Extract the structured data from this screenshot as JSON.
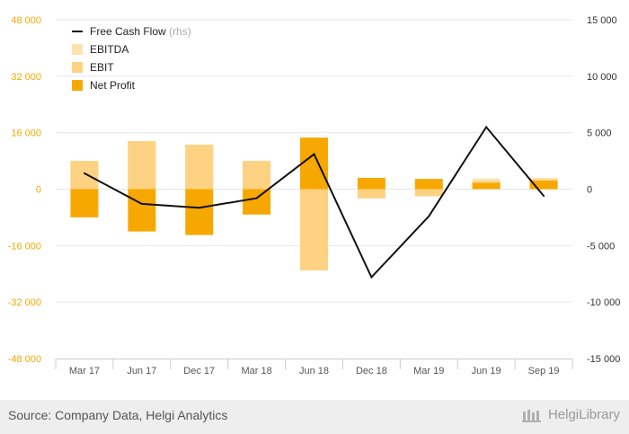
{
  "chart_data": {
    "type": "bar+line",
    "categories": [
      "Mar 17",
      "Jun 17",
      "Dec 17",
      "Mar 18",
      "Jun 18",
      "Dec 18",
      "Mar 19",
      "Jun 19",
      "Sep 19"
    ],
    "series": [
      {
        "name": "EBITDA",
        "axis": "left",
        "color": "#fde2ad",
        "values": [
          8000,
          13600,
          12600,
          8000,
          -23000,
          -2600,
          -2000,
          3000,
          3200
        ]
      },
      {
        "name": "EBIT",
        "axis": "left",
        "color": "#fdd282",
        "values": [
          8000,
          13600,
          12600,
          8000,
          -23000,
          -2600,
          -2000,
          2200,
          2700
        ]
      },
      {
        "name": "Net Profit",
        "axis": "left",
        "color": "#f7a800",
        "values": [
          -8000,
          -12000,
          -13000,
          -7200,
          14600,
          3200,
          2900,
          1800,
          2400
        ]
      },
      {
        "name": "Free Cash Flow",
        "suffix": "(rhs)",
        "axis": "right",
        "color": "#111111",
        "values": [
          1400,
          -1300,
          -1650,
          -800,
          3100,
          -7800,
          -2400,
          5500,
          -600
        ]
      }
    ],
    "left_axis": {
      "min": -48000,
      "max": 48000,
      "ticks": [
        "48 000",
        "32 000",
        "16 000",
        "0",
        "-16 000",
        "-32 000",
        "-48 000"
      ],
      "tick_values": [
        48000,
        32000,
        16000,
        0,
        -16000,
        -32000,
        -48000
      ]
    },
    "right_axis": {
      "min": -15000,
      "max": 15000,
      "ticks": [
        "15 000",
        "10 000",
        "5 000",
        "0",
        "-5 000",
        "-10 000",
        "-15 000"
      ],
      "tick_values": [
        15000,
        10000,
        5000,
        0,
        -5000,
        -10000,
        -15000
      ]
    },
    "legend_position": "top-left",
    "grid": true
  },
  "colors": {
    "left_axis_text": "#f2a900",
    "right_axis_text": "#333333",
    "grid": "#e6e6e6",
    "category_text": "#555555"
  },
  "footer": {
    "source": "Source: Company Data, Helgi Analytics",
    "logo": "HelgiLibrary"
  }
}
